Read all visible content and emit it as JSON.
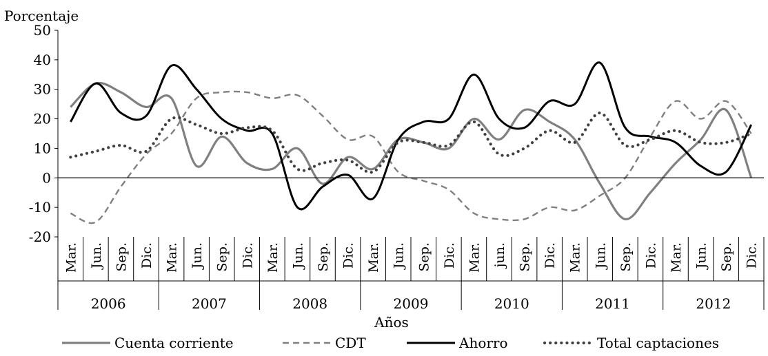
{
  "chart_data": {
    "type": "line",
    "ylabel": "Porcentaje",
    "xlabel": "Años",
    "ylim": [
      -20,
      50
    ],
    "yticks": [
      -20,
      -10,
      0,
      10,
      20,
      30,
      40,
      50
    ],
    "categories": [
      "Mar.",
      "Jun.",
      "Sep.",
      "Dic.",
      "Mar.",
      "Jun.",
      "Sep.",
      "Dic.",
      "Mar.",
      "Jun.",
      "Sep.",
      "Dic.",
      "Mar.",
      "Jun.",
      "Sep.",
      "Dic.",
      "Mar.",
      "jun.",
      "Sep.",
      "Dic.",
      "Mar.",
      "Jun.",
      "Sep.",
      "Dic.",
      "Mar.",
      "Jun.",
      "Sep.",
      "Dic."
    ],
    "years": [
      "2006",
      "2007",
      "2008",
      "2009",
      "2010",
      "2011",
      "2012"
    ],
    "legend_position": "bottom",
    "series": [
      {
        "name": "Cuenta corriente",
        "color": "#808080",
        "style": "solid",
        "values": [
          24,
          32,
          29,
          24,
          27,
          4,
          14,
          5,
          3,
          10,
          -2,
          7,
          3,
          13,
          12,
          10,
          20,
          13,
          23,
          19,
          13,
          -2,
          -14,
          -5,
          5,
          13,
          23,
          0
        ]
      },
      {
        "name": "CDT",
        "color": "#808080",
        "style": "dashed",
        "values": [
          -12,
          -15,
          -3,
          8,
          15,
          27,
          29,
          29,
          27,
          28,
          21,
          13,
          14,
          2,
          -1,
          -4,
          -12,
          -14,
          -14,
          -10,
          -11,
          -6,
          0,
          14,
          26,
          20,
          26,
          15
        ]
      },
      {
        "name": "Ahorro",
        "color": "#000000",
        "style": "solid",
        "values": [
          19,
          32,
          22,
          21,
          38,
          30,
          20,
          16,
          15,
          -10,
          -3,
          1,
          -7,
          13,
          19,
          20,
          35,
          20,
          17,
          26,
          25,
          39,
          17,
          14,
          12,
          4,
          2,
          18
        ]
      },
      {
        "name": "Total captaciones",
        "color": "#404040",
        "style": "dotted",
        "values": [
          7,
          9,
          11,
          9,
          20,
          18,
          15,
          17,
          16,
          3,
          5,
          6,
          2,
          12,
          12,
          11,
          19,
          8,
          10,
          16,
          12,
          22,
          11,
          13,
          16,
          12,
          12,
          15
        ]
      }
    ]
  }
}
